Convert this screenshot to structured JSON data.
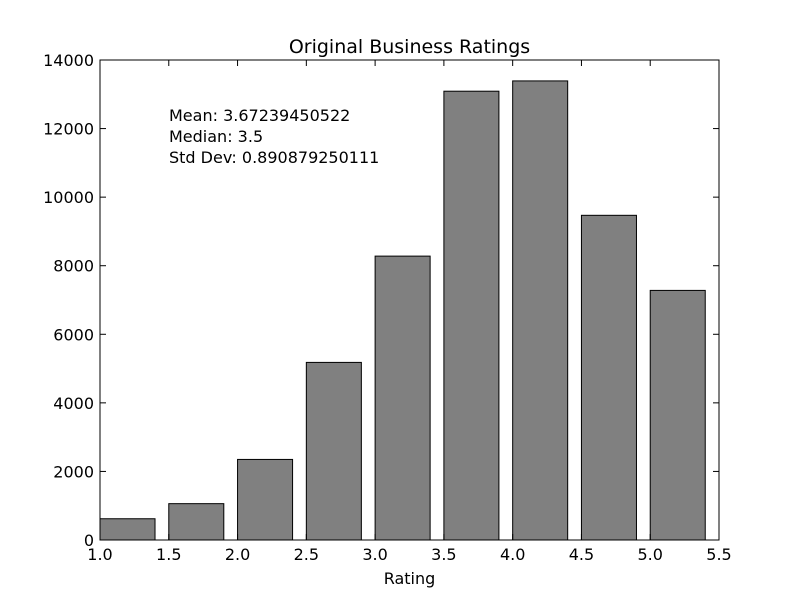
{
  "chart_data": {
    "type": "bar",
    "title": "Original Business Ratings",
    "xlabel": "Rating",
    "ylabel": "",
    "xlim": [
      1.0,
      5.5
    ],
    "ylim": [
      0,
      14000
    ],
    "x_ticks": [
      "1.0",
      "1.5",
      "2.0",
      "2.5",
      "3.0",
      "3.5",
      "4.0",
      "4.5",
      "5.0",
      "5.5"
    ],
    "y_ticks": [
      "0",
      "2000",
      "4000",
      "6000",
      "8000",
      "10000",
      "12000",
      "14000"
    ],
    "bar_width": 0.4,
    "bars": [
      {
        "x": 1.0,
        "value": 620
      },
      {
        "x": 1.5,
        "value": 1060
      },
      {
        "x": 2.0,
        "value": 2350
      },
      {
        "x": 2.5,
        "value": 5180
      },
      {
        "x": 3.0,
        "value": 8280
      },
      {
        "x": 3.5,
        "value": 13090
      },
      {
        "x": 4.0,
        "value": 13390
      },
      {
        "x": 4.5,
        "value": 9470
      },
      {
        "x": 5.0,
        "value": 7280
      }
    ],
    "annotations": [
      "Mean: 3.67239450522",
      "Median: 3.5",
      "Std Dev: 0.890879250111"
    ],
    "colors": {
      "bar_fill": "#808080",
      "bar_edge": "#000000"
    },
    "grid": false,
    "legend": "none"
  }
}
